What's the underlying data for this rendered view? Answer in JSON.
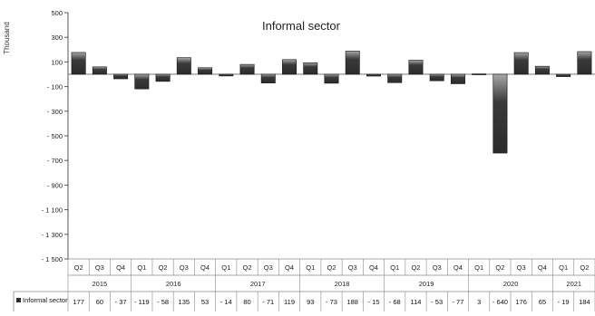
{
  "chart_data": {
    "type": "bar",
    "title": "Informal sector",
    "ylabel": "Thousand",
    "xlabel": "",
    "ylim": [
      -1500,
      500
    ],
    "yticks": [
      500,
      300,
      100,
      -100,
      -300,
      -500,
      -700,
      -900,
      -1100,
      -1300,
      -1500
    ],
    "yticks_text": [
      "500",
      "300",
      "100",
      "- 100",
      "- 300",
      "- 500",
      "- 700",
      "- 900",
      "- 1 100",
      "- 1 300",
      "- 1 500"
    ],
    "grid": false,
    "legend": "table-left",
    "bar_color": "#2b2b2b",
    "quarters": [
      "Q2",
      "Q3",
      "Q4",
      "Q1",
      "Q2",
      "Q3",
      "Q4",
      "Q1",
      "Q2",
      "Q3",
      "Q4",
      "Q1",
      "Q2",
      "Q3",
      "Q4",
      "Q1",
      "Q2",
      "Q3",
      "Q4",
      "Q1",
      "Q2",
      "Q3",
      "Q4",
      "Q1",
      "Q2"
    ],
    "years": [
      {
        "label": "2015",
        "count": 3
      },
      {
        "label": "2016",
        "count": 4
      },
      {
        "label": "2017",
        "count": 4
      },
      {
        "label": "2018",
        "count": 4
      },
      {
        "label": "2019",
        "count": 4
      },
      {
        "label": "2020",
        "count": 4
      },
      {
        "label": "2021",
        "count": 2
      }
    ],
    "series": [
      {
        "name": "Informal sector",
        "values": [
          177,
          60,
          -37,
          -119,
          -58,
          135,
          53,
          -14,
          80,
          -71,
          119,
          93,
          -73,
          188,
          -15,
          -68,
          114,
          -53,
          -77,
          3,
          -640,
          176,
          65,
          -19,
          184
        ],
        "labels": [
          "177",
          "60",
          "- 37",
          "- 119",
          "- 58",
          "135",
          "53",
          "- 14",
          "80",
          "- 71",
          "119",
          "93",
          "- 73",
          "188",
          "- 15",
          "- 68",
          "114",
          "- 53",
          "- 77",
          "3",
          "- 640",
          "176",
          "65",
          "- 19",
          "184"
        ]
      }
    ]
  }
}
